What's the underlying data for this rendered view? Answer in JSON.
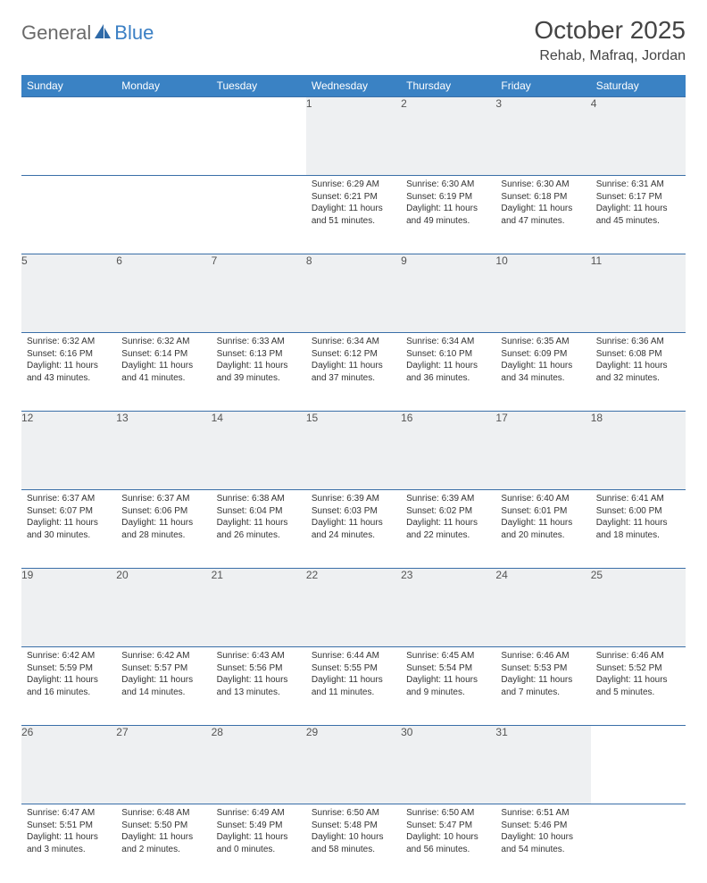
{
  "logo": {
    "general": "General",
    "blue": "Blue"
  },
  "title": "October 2025",
  "location": "Rehab, Mafraq, Jordan",
  "dayHeaders": [
    "Sunday",
    "Monday",
    "Tuesday",
    "Wednesday",
    "Thursday",
    "Friday",
    "Saturday"
  ],
  "colors": {
    "headerBg": "#3a82c4",
    "headerText": "#ffffff",
    "dayNumBg": "#eef0f2",
    "border": "#3a6fa8",
    "logoBlue": "#3a7fc4",
    "logoGray": "#6a6a6a",
    "bodyText": "#333333"
  },
  "weeks": [
    [
      null,
      null,
      null,
      {
        "n": "1",
        "sr": "Sunrise: 6:29 AM",
        "ss": "Sunset: 6:21 PM",
        "d1": "Daylight: 11 hours",
        "d2": "and 51 minutes."
      },
      {
        "n": "2",
        "sr": "Sunrise: 6:30 AM",
        "ss": "Sunset: 6:19 PM",
        "d1": "Daylight: 11 hours",
        "d2": "and 49 minutes."
      },
      {
        "n": "3",
        "sr": "Sunrise: 6:30 AM",
        "ss": "Sunset: 6:18 PM",
        "d1": "Daylight: 11 hours",
        "d2": "and 47 minutes."
      },
      {
        "n": "4",
        "sr": "Sunrise: 6:31 AM",
        "ss": "Sunset: 6:17 PM",
        "d1": "Daylight: 11 hours",
        "d2": "and 45 minutes."
      }
    ],
    [
      {
        "n": "5",
        "sr": "Sunrise: 6:32 AM",
        "ss": "Sunset: 6:16 PM",
        "d1": "Daylight: 11 hours",
        "d2": "and 43 minutes."
      },
      {
        "n": "6",
        "sr": "Sunrise: 6:32 AM",
        "ss": "Sunset: 6:14 PM",
        "d1": "Daylight: 11 hours",
        "d2": "and 41 minutes."
      },
      {
        "n": "7",
        "sr": "Sunrise: 6:33 AM",
        "ss": "Sunset: 6:13 PM",
        "d1": "Daylight: 11 hours",
        "d2": "and 39 minutes."
      },
      {
        "n": "8",
        "sr": "Sunrise: 6:34 AM",
        "ss": "Sunset: 6:12 PM",
        "d1": "Daylight: 11 hours",
        "d2": "and 37 minutes."
      },
      {
        "n": "9",
        "sr": "Sunrise: 6:34 AM",
        "ss": "Sunset: 6:10 PM",
        "d1": "Daylight: 11 hours",
        "d2": "and 36 minutes."
      },
      {
        "n": "10",
        "sr": "Sunrise: 6:35 AM",
        "ss": "Sunset: 6:09 PM",
        "d1": "Daylight: 11 hours",
        "d2": "and 34 minutes."
      },
      {
        "n": "11",
        "sr": "Sunrise: 6:36 AM",
        "ss": "Sunset: 6:08 PM",
        "d1": "Daylight: 11 hours",
        "d2": "and 32 minutes."
      }
    ],
    [
      {
        "n": "12",
        "sr": "Sunrise: 6:37 AM",
        "ss": "Sunset: 6:07 PM",
        "d1": "Daylight: 11 hours",
        "d2": "and 30 minutes."
      },
      {
        "n": "13",
        "sr": "Sunrise: 6:37 AM",
        "ss": "Sunset: 6:06 PM",
        "d1": "Daylight: 11 hours",
        "d2": "and 28 minutes."
      },
      {
        "n": "14",
        "sr": "Sunrise: 6:38 AM",
        "ss": "Sunset: 6:04 PM",
        "d1": "Daylight: 11 hours",
        "d2": "and 26 minutes."
      },
      {
        "n": "15",
        "sr": "Sunrise: 6:39 AM",
        "ss": "Sunset: 6:03 PM",
        "d1": "Daylight: 11 hours",
        "d2": "and 24 minutes."
      },
      {
        "n": "16",
        "sr": "Sunrise: 6:39 AM",
        "ss": "Sunset: 6:02 PM",
        "d1": "Daylight: 11 hours",
        "d2": "and 22 minutes."
      },
      {
        "n": "17",
        "sr": "Sunrise: 6:40 AM",
        "ss": "Sunset: 6:01 PM",
        "d1": "Daylight: 11 hours",
        "d2": "and 20 minutes."
      },
      {
        "n": "18",
        "sr": "Sunrise: 6:41 AM",
        "ss": "Sunset: 6:00 PM",
        "d1": "Daylight: 11 hours",
        "d2": "and 18 minutes."
      }
    ],
    [
      {
        "n": "19",
        "sr": "Sunrise: 6:42 AM",
        "ss": "Sunset: 5:59 PM",
        "d1": "Daylight: 11 hours",
        "d2": "and 16 minutes."
      },
      {
        "n": "20",
        "sr": "Sunrise: 6:42 AM",
        "ss": "Sunset: 5:57 PM",
        "d1": "Daylight: 11 hours",
        "d2": "and 14 minutes."
      },
      {
        "n": "21",
        "sr": "Sunrise: 6:43 AM",
        "ss": "Sunset: 5:56 PM",
        "d1": "Daylight: 11 hours",
        "d2": "and 13 minutes."
      },
      {
        "n": "22",
        "sr": "Sunrise: 6:44 AM",
        "ss": "Sunset: 5:55 PM",
        "d1": "Daylight: 11 hours",
        "d2": "and 11 minutes."
      },
      {
        "n": "23",
        "sr": "Sunrise: 6:45 AM",
        "ss": "Sunset: 5:54 PM",
        "d1": "Daylight: 11 hours",
        "d2": "and 9 minutes."
      },
      {
        "n": "24",
        "sr": "Sunrise: 6:46 AM",
        "ss": "Sunset: 5:53 PM",
        "d1": "Daylight: 11 hours",
        "d2": "and 7 minutes."
      },
      {
        "n": "25",
        "sr": "Sunrise: 6:46 AM",
        "ss": "Sunset: 5:52 PM",
        "d1": "Daylight: 11 hours",
        "d2": "and 5 minutes."
      }
    ],
    [
      {
        "n": "26",
        "sr": "Sunrise: 6:47 AM",
        "ss": "Sunset: 5:51 PM",
        "d1": "Daylight: 11 hours",
        "d2": "and 3 minutes."
      },
      {
        "n": "27",
        "sr": "Sunrise: 6:48 AM",
        "ss": "Sunset: 5:50 PM",
        "d1": "Daylight: 11 hours",
        "d2": "and 2 minutes."
      },
      {
        "n": "28",
        "sr": "Sunrise: 6:49 AM",
        "ss": "Sunset: 5:49 PM",
        "d1": "Daylight: 11 hours",
        "d2": "and 0 minutes."
      },
      {
        "n": "29",
        "sr": "Sunrise: 6:50 AM",
        "ss": "Sunset: 5:48 PM",
        "d1": "Daylight: 10 hours",
        "d2": "and 58 minutes."
      },
      {
        "n": "30",
        "sr": "Sunrise: 6:50 AM",
        "ss": "Sunset: 5:47 PM",
        "d1": "Daylight: 10 hours",
        "d2": "and 56 minutes."
      },
      {
        "n": "31",
        "sr": "Sunrise: 6:51 AM",
        "ss": "Sunset: 5:46 PM",
        "d1": "Daylight: 10 hours",
        "d2": "and 54 minutes."
      },
      null
    ]
  ]
}
